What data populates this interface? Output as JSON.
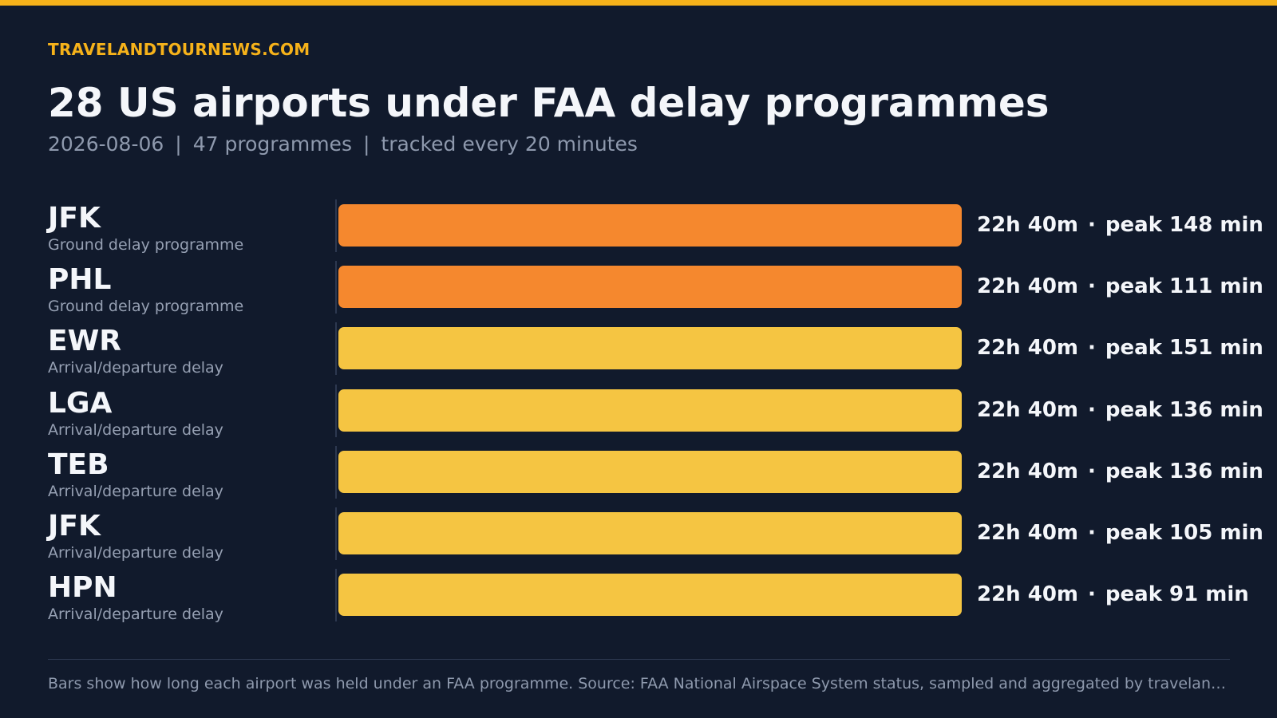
{
  "header": {
    "brand": "TRAVELANDTOURNEWS.COM",
    "title": "28 US airports under FAA delay programmes",
    "subtitle_date": "2026-08-06",
    "subtitle_programmes": "47 programmes",
    "subtitle_tracking": "tracked every 20 minutes",
    "separator": "|"
  },
  "colors": {
    "accent": "#f6b21a",
    "ground_delay": "#f5882e",
    "arrival_departure": "#f5c542",
    "background": "#111a2c"
  },
  "chart_data": {
    "type": "bar",
    "orientation": "horizontal",
    "title": "28 US airports under FAA delay programmes",
    "xlim": [
      0,
      1360
    ],
    "grid": false,
    "categories": [
      "JFK",
      "PHL",
      "EWR",
      "LGA",
      "TEB",
      "JFK",
      "HPN"
    ],
    "rows": [
      {
        "code": "JFK",
        "type": "Ground delay programme",
        "duration_minutes": 1360,
        "duration_label": "22h 40m",
        "peak_label": "peak 148 min",
        "peak": 148,
        "color": "#f5882e"
      },
      {
        "code": "PHL",
        "type": "Ground delay programme",
        "duration_minutes": 1360,
        "duration_label": "22h 40m",
        "peak_label": "peak 111 min",
        "peak": 111,
        "color": "#f5882e"
      },
      {
        "code": "EWR",
        "type": "Arrival/departure delay",
        "duration_minutes": 1360,
        "duration_label": "22h 40m",
        "peak_label": "peak 151 min",
        "peak": 151,
        "color": "#f5c542"
      },
      {
        "code": "LGA",
        "type": "Arrival/departure delay",
        "duration_minutes": 1360,
        "duration_label": "22h 40m",
        "peak_label": "peak 136 min",
        "peak": 136,
        "color": "#f5c542"
      },
      {
        "code": "TEB",
        "type": "Arrival/departure delay",
        "duration_minutes": 1360,
        "duration_label": "22h 40m",
        "peak_label": "peak 136 min",
        "peak": 136,
        "color": "#f5c542"
      },
      {
        "code": "JFK",
        "type": "Arrival/departure delay",
        "duration_minutes": 1360,
        "duration_label": "22h 40m",
        "peak_label": "peak 105 min",
        "peak": 105,
        "color": "#f5c542"
      },
      {
        "code": "HPN",
        "type": "Arrival/departure delay",
        "duration_minutes": 1360,
        "duration_label": "22h 40m",
        "peak_label": "peak 91 min",
        "peak": 91,
        "color": "#f5c542"
      }
    ],
    "value_separator": "·"
  },
  "footer": {
    "note": "Bars show how long each airport was held under an FAA programme. Source: FAA National Airspace System status, sampled and aggregated by travelandtour..."
  }
}
